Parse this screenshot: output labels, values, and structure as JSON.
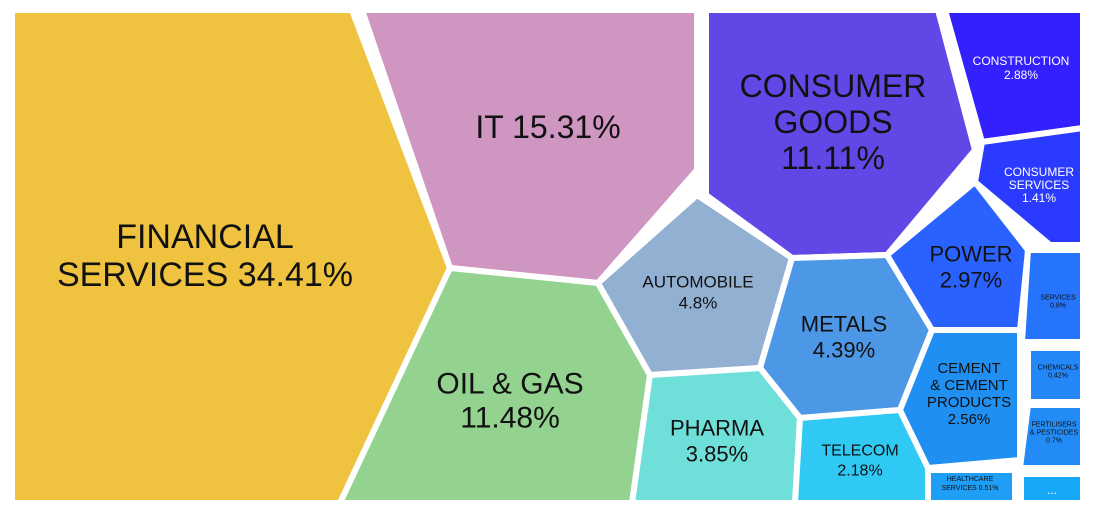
{
  "chart_data": {
    "type": "voronoi-treemap",
    "cells": [
      {
        "name": "FINANCIAL SERVICES",
        "value": 34.41,
        "label": [
          "FINANCIAL",
          "SERVICES 34.41%"
        ],
        "color": "#efc23f"
      },
      {
        "name": "IT",
        "value": 15.31,
        "label": [
          "IT 15.31%"
        ],
        "color": "#d096c2"
      },
      {
        "name": "CONSUMER GOODS",
        "value": 11.11,
        "label": [
          "CONSUMER",
          "GOODS",
          "11.11%"
        ],
        "color": "#6347e6"
      },
      {
        "name": "OIL & GAS",
        "value": 11.48,
        "label": [
          "OIL & GAS",
          "11.48%"
        ],
        "color": "#93d28f"
      },
      {
        "name": "AUTOMOBILE",
        "value": 4.8,
        "label": [
          "AUTOMOBILE",
          "4.8%"
        ],
        "color": "#91b0d2"
      },
      {
        "name": "METALS",
        "value": 4.39,
        "label": [
          "METALS",
          "4.39%"
        ],
        "color": "#4d98e6"
      },
      {
        "name": "PHARMA",
        "value": 3.85,
        "label": [
          "PHARMA",
          "3.85%"
        ],
        "color": "#6edfd9"
      },
      {
        "name": "TELECOM",
        "value": 2.18,
        "label": [
          "TELECOM",
          "2.18%"
        ],
        "color": "#2fc9f4"
      },
      {
        "name": "POWER",
        "value": 2.97,
        "label": [
          "POWER",
          "2.97%"
        ],
        "color": "#2962ff"
      },
      {
        "name": "CONSTRUCTION",
        "value": 2.88,
        "label": [
          "CONSTRUCTION",
          "2.88%"
        ],
        "color": "#3220ff"
      },
      {
        "name": "CONSUMER SERVICES",
        "value": 1.41,
        "label": [
          "CONSUMER",
          "SERVICES",
          "1.41%"
        ],
        "color": "#2a3bff"
      },
      {
        "name": "CEMENT & CEMENT PRODUCTS",
        "value": 2.56,
        "label": [
          "CEMENT",
          "& CEMENT",
          "PRODUCTS",
          "2.56%"
        ],
        "color": "#1f8ff2"
      },
      {
        "name": "SERVICES",
        "value": 0.8,
        "label": [
          "SERVICES",
          "0.8%"
        ],
        "color": "#2574fb"
      },
      {
        "name": "CHEMICALS",
        "value": 0.42,
        "label": [
          "CHEMICALS",
          "0.42%"
        ],
        "color": "#2487f7"
      },
      {
        "name": "FERTILISERS & PESTICIDES",
        "value": 0.7,
        "label": [
          "FERTILISERS",
          "& PESTICIDES",
          "0.7%"
        ],
        "color": "#228bf5"
      },
      {
        "name": "HEALTHCARE SERVICES",
        "value": 0.51,
        "label": [
          "HEALTHCARE",
          "SERVICES 0.51%"
        ],
        "color": "#1e9ef4"
      },
      {
        "name": "more",
        "value": null,
        "label": [
          "..."
        ],
        "color": "#16a7f6"
      }
    ]
  }
}
